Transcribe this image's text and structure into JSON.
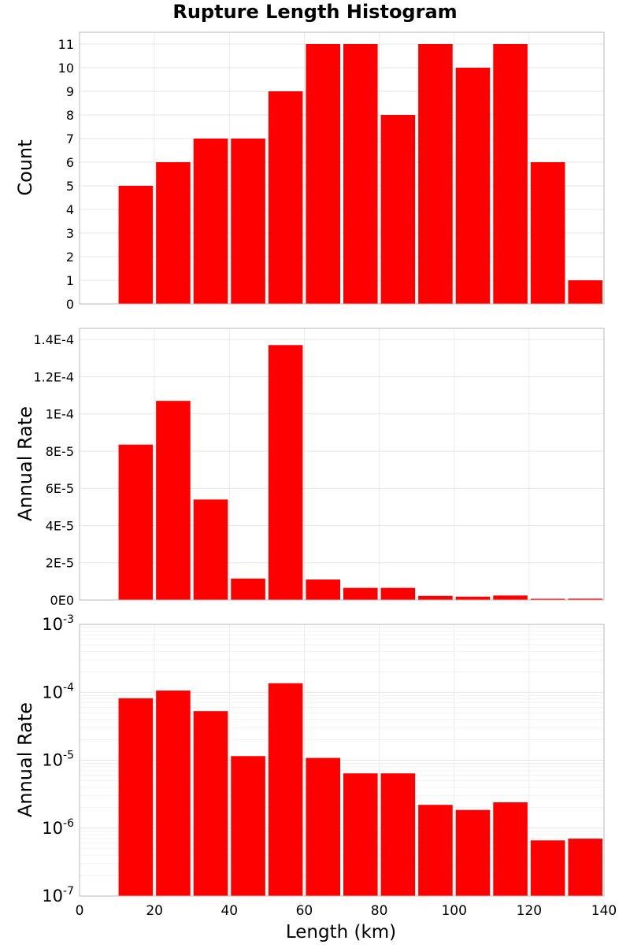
{
  "chart_data": {
    "title": "Rupture Length Histogram",
    "xlabel": "Length (km)",
    "xlim": [
      0,
      140
    ],
    "xticks": [
      "0",
      "20",
      "40",
      "60",
      "80",
      "100",
      "120",
      "140"
    ],
    "bin_width": 10,
    "bar_color": "#ff0000",
    "grid": true,
    "bins": [
      10,
      20,
      30,
      40,
      50,
      60,
      70,
      80,
      90,
      100,
      110,
      120,
      130
    ],
    "panels": [
      {
        "type": "bar",
        "ylabel": "Count",
        "scale": "linear",
        "ylim": [
          0,
          11.5
        ],
        "yticks": [
          {
            "value": 0,
            "label": "0"
          },
          {
            "value": 1,
            "label": "1"
          },
          {
            "value": 2,
            "label": "2"
          },
          {
            "value": 3,
            "label": "3"
          },
          {
            "value": 4,
            "label": "4"
          },
          {
            "value": 5,
            "label": "5"
          },
          {
            "value": 6,
            "label": "6"
          },
          {
            "value": 7,
            "label": "7"
          },
          {
            "value": 8,
            "label": "8"
          },
          {
            "value": 9,
            "label": "9"
          },
          {
            "value": 10,
            "label": "10"
          },
          {
            "value": 11,
            "label": "11"
          }
        ],
        "values": [
          5,
          6,
          7,
          7,
          9,
          11,
          11,
          8,
          11,
          10,
          11,
          6,
          1
        ]
      },
      {
        "type": "bar",
        "ylabel": "Annual Rate",
        "scale": "linear",
        "ylim": [
          0,
          0.000146
        ],
        "yticks": [
          {
            "value": 0,
            "label": "0E0"
          },
          {
            "value": 2e-05,
            "label": "2E-5"
          },
          {
            "value": 4e-05,
            "label": "4E-5"
          },
          {
            "value": 6e-05,
            "label": "6E-5"
          },
          {
            "value": 8e-05,
            "label": "8E-5"
          },
          {
            "value": 0.0001,
            "label": "1E-4"
          },
          {
            "value": 0.00012,
            "label": "1.2E-4"
          },
          {
            "value": 0.00014,
            "label": "1.4E-4"
          }
        ],
        "values": [
          8.35e-05,
          0.000107,
          5.4e-05,
          1.15e-05,
          0.000137,
          1.1e-05,
          6.5e-06,
          6.5e-06,
          2.2e-06,
          1.8e-06,
          2.4e-06,
          6.5e-07,
          7e-07
        ]
      },
      {
        "type": "bar",
        "ylabel": "Annual Rate",
        "scale": "log",
        "ylim": [
          1e-07,
          0.001
        ],
        "yticks": [
          {
            "value": 1e-07,
            "base": "10",
            "exp": "-7"
          },
          {
            "value": 1e-06,
            "base": "10",
            "exp": "-6"
          },
          {
            "value": 1e-05,
            "base": "10",
            "exp": "-5"
          },
          {
            "value": 0.0001,
            "base": "10",
            "exp": "-4"
          },
          {
            "value": 0.001,
            "base": "10",
            "exp": "-3"
          }
        ],
        "values": [
          8.17e-05,
          0.000106,
          5.28e-05,
          1.15e-05,
          0.000136,
          1.08e-05,
          6.4e-06,
          6.4e-06,
          2.2e-06,
          1.85e-06,
          2.4e-06,
          6.6e-07,
          7e-07
        ]
      }
    ]
  }
}
